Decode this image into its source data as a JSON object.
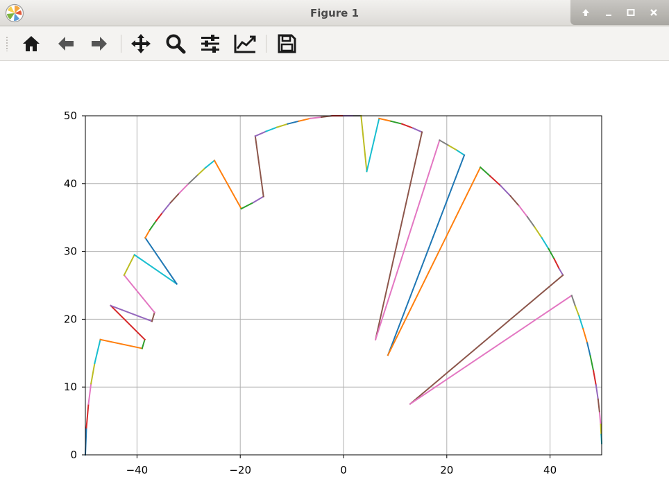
{
  "window": {
    "title": "Figure 1",
    "app_icon": "matplotlib-logo-icon",
    "controls": [
      "shade-up-icon",
      "minimize-icon",
      "maximize-icon",
      "close-icon"
    ]
  },
  "toolbar": {
    "tools": [
      {
        "name": "home-icon"
      },
      {
        "name": "back-icon"
      },
      {
        "name": "forward-icon"
      },
      {
        "name": "pan-icon"
      },
      {
        "name": "zoom-icon"
      },
      {
        "name": "configure-subplots-icon"
      },
      {
        "name": "edit-axis-icon"
      },
      {
        "name": "save-icon"
      }
    ]
  },
  "colors": {
    "palette": [
      "#1f77b4",
      "#ff7f0e",
      "#2ca02c",
      "#d62728",
      "#9467bd",
      "#8c564b",
      "#e377c2",
      "#7f7f7f",
      "#bcbd22",
      "#17becf"
    ]
  },
  "chart_data": {
    "type": "line",
    "title": "",
    "xlabel": "",
    "ylabel": "",
    "xlim": [
      -50,
      50
    ],
    "ylim": [
      0,
      50
    ],
    "grid": true,
    "legend": "none",
    "xticks": [
      -40,
      -20,
      0,
      20,
      40
    ],
    "xtick_labels": [
      "−40",
      "−20",
      "0",
      "20",
      "40"
    ],
    "yticks": [
      0,
      10,
      20,
      30,
      40,
      50
    ],
    "ytick_labels": [
      "0",
      "10",
      "20",
      "30",
      "40",
      "50"
    ],
    "description": "Many short colored segments forming a semicircle of radius 50 with inward spikes",
    "series": [
      {
        "color": "#1f77b4",
        "points": [
          [
            -50,
            0
          ],
          [
            -49.8,
            4
          ]
        ]
      },
      {
        "color": "#d62728",
        "points": [
          [
            -49.8,
            4
          ],
          [
            -49.4,
            7.5
          ]
        ]
      },
      {
        "color": "#e377c2",
        "points": [
          [
            -49.4,
            7.5
          ],
          [
            -48.9,
            10.5
          ]
        ]
      },
      {
        "color": "#bcbd22",
        "points": [
          [
            -48.9,
            10.5
          ],
          [
            -48.2,
            13.5
          ]
        ]
      },
      {
        "color": "#17becf",
        "points": [
          [
            -48.2,
            13.5
          ],
          [
            -47.1,
            17
          ]
        ]
      },
      {
        "color": "#ff7f0e",
        "points": [
          [
            -47.1,
            17
          ],
          [
            -39.0,
            15.7
          ]
        ]
      },
      {
        "color": "#2ca02c",
        "points": [
          [
            -39.0,
            15.7
          ],
          [
            -38.5,
            17
          ]
        ]
      },
      {
        "color": "#d62728",
        "points": [
          [
            -38.5,
            17
          ],
          [
            -45.1,
            22
          ]
        ]
      },
      {
        "color": "#9467bd",
        "points": [
          [
            -45.1,
            22
          ],
          [
            -37.1,
            19.7
          ]
        ]
      },
      {
        "color": "#8c564b",
        "points": [
          [
            -37.1,
            19.7
          ],
          [
            -36.6,
            21
          ]
        ]
      },
      {
        "color": "#e377c2",
        "points": [
          [
            -36.6,
            21
          ],
          [
            -42.5,
            26.5
          ]
        ]
      },
      {
        "color": "#bcbd22",
        "points": [
          [
            -42.5,
            26.5
          ],
          [
            -40.5,
            29.5
          ]
        ]
      },
      {
        "color": "#17becf",
        "points": [
          [
            -40.5,
            29.5
          ],
          [
            -32.3,
            25.2
          ]
        ]
      },
      {
        "color": "#1f77b4",
        "points": [
          [
            -32.3,
            25.2
          ],
          [
            -38.4,
            32
          ]
        ]
      },
      {
        "color": "#ff7f0e",
        "points": [
          [
            -38.4,
            32
          ],
          [
            -37.5,
            33.2
          ]
        ]
      },
      {
        "color": "#2ca02c",
        "points": [
          [
            -37.5,
            33.2
          ],
          [
            -36.3,
            34.5
          ]
        ]
      },
      {
        "color": "#d62728",
        "points": [
          [
            -36.3,
            34.5
          ],
          [
            -35.1,
            35.7
          ]
        ]
      },
      {
        "color": "#9467bd",
        "points": [
          [
            -35.1,
            35.7
          ],
          [
            -33.5,
            37.2
          ]
        ]
      },
      {
        "color": "#8c564b",
        "points": [
          [
            -33.5,
            37.2
          ],
          [
            -31.8,
            38.6
          ]
        ]
      },
      {
        "color": "#e377c2",
        "points": [
          [
            -31.8,
            38.6
          ],
          [
            -30.0,
            40.0
          ]
        ]
      },
      {
        "color": "#7f7f7f",
        "points": [
          [
            -30.0,
            40.0
          ],
          [
            -28.2,
            41.3
          ]
        ]
      },
      {
        "color": "#bcbd22",
        "points": [
          [
            -28.2,
            41.3
          ],
          [
            -26.8,
            42.3
          ]
        ]
      },
      {
        "color": "#17becf",
        "points": [
          [
            -26.8,
            42.3
          ],
          [
            -25.0,
            43.4
          ]
        ]
      },
      {
        "color": "#ff7f0e",
        "points": [
          [
            -25.0,
            43.4
          ],
          [
            -19.8,
            36.3
          ]
        ]
      },
      {
        "color": "#2ca02c",
        "points": [
          [
            -19.8,
            36.3
          ],
          [
            -17.5,
            37.2
          ]
        ]
      },
      {
        "color": "#9467bd",
        "points": [
          [
            -17.5,
            37.2
          ],
          [
            -15.5,
            38.1
          ]
        ]
      },
      {
        "color": "#8c564b",
        "points": [
          [
            -15.5,
            38.1
          ],
          [
            -17.1,
            47
          ]
        ]
      },
      {
        "color": "#9467bd",
        "points": [
          [
            -17.1,
            47
          ],
          [
            -15.0,
            47.7
          ]
        ]
      },
      {
        "color": "#17becf",
        "points": [
          [
            -15.0,
            47.7
          ],
          [
            -12.9,
            48.3
          ]
        ]
      },
      {
        "color": "#bcbd22",
        "points": [
          [
            -12.9,
            48.3
          ],
          [
            -10.8,
            48.8
          ]
        ]
      },
      {
        "color": "#1f77b4",
        "points": [
          [
            -10.8,
            48.8
          ],
          [
            -8.7,
            49.2
          ]
        ]
      },
      {
        "color": "#ff7f0e",
        "points": [
          [
            -8.7,
            49.2
          ],
          [
            -6.5,
            49.6
          ]
        ]
      },
      {
        "color": "#e377c2",
        "points": [
          [
            -6.5,
            49.6
          ],
          [
            -4.3,
            49.8
          ]
        ]
      },
      {
        "color": "#8c564b",
        "points": [
          [
            -4.3,
            49.8
          ],
          [
            -2.2,
            50
          ]
        ]
      },
      {
        "color": "#d62728",
        "points": [
          [
            -2.2,
            50
          ],
          [
            0,
            50
          ]
        ]
      },
      {
        "color": "#9467bd",
        "points": [
          [
            0,
            50
          ],
          [
            2.0,
            50
          ]
        ]
      },
      {
        "color": "#7f7f7f",
        "points": [
          [
            2.0,
            50
          ],
          [
            3.4,
            50
          ]
        ]
      },
      {
        "color": "#bcbd22",
        "points": [
          [
            3.4,
            50
          ],
          [
            4.5,
            41.8
          ]
        ]
      },
      {
        "color": "#17becf",
        "points": [
          [
            4.5,
            41.8
          ],
          [
            6.9,
            49.6
          ]
        ]
      },
      {
        "color": "#ff7f0e",
        "points": [
          [
            6.9,
            49.6
          ],
          [
            9.2,
            49.2
          ]
        ]
      },
      {
        "color": "#2ca02c",
        "points": [
          [
            9.2,
            49.2
          ],
          [
            11.3,
            48.8
          ]
        ]
      },
      {
        "color": "#d62728",
        "points": [
          [
            11.3,
            48.8
          ],
          [
            13.4,
            48.2
          ]
        ]
      },
      {
        "color": "#9467bd",
        "points": [
          [
            13.4,
            48.2
          ],
          [
            15.2,
            47.6
          ]
        ]
      },
      {
        "color": "#8c564b",
        "points": [
          [
            15.2,
            47.6
          ],
          [
            6.2,
            17.0
          ]
        ]
      },
      {
        "color": "#e377c2",
        "points": [
          [
            6.2,
            17.0
          ],
          [
            18.6,
            46.4
          ]
        ]
      },
      {
        "color": "#7f7f7f",
        "points": [
          [
            18.6,
            46.4
          ],
          [
            20.4,
            45.6
          ]
        ]
      },
      {
        "color": "#bcbd22",
        "points": [
          [
            20.4,
            45.6
          ],
          [
            22.0,
            44.9
          ]
        ]
      },
      {
        "color": "#17becf",
        "points": [
          [
            22.0,
            44.9
          ],
          [
            23.4,
            44.2
          ]
        ]
      },
      {
        "color": "#1f77b4",
        "points": [
          [
            23.4,
            44.2
          ],
          [
            8.6,
            14.7
          ]
        ]
      },
      {
        "color": "#ff7f0e",
        "points": [
          [
            8.6,
            14.7
          ],
          [
            26.5,
            42.4
          ]
        ]
      },
      {
        "color": "#2ca02c",
        "points": [
          [
            26.5,
            42.4
          ],
          [
            28.4,
            41.1
          ]
        ]
      },
      {
        "color": "#d62728",
        "points": [
          [
            28.4,
            41.1
          ],
          [
            30.4,
            39.7
          ]
        ]
      },
      {
        "color": "#9467bd",
        "points": [
          [
            30.4,
            39.7
          ],
          [
            32.3,
            38.2
          ]
        ]
      },
      {
        "color": "#8c564b",
        "points": [
          [
            32.3,
            38.2
          ],
          [
            34.0,
            36.7
          ]
        ]
      },
      {
        "color": "#e377c2",
        "points": [
          [
            34.0,
            36.7
          ],
          [
            35.6,
            35.1
          ]
        ]
      },
      {
        "color": "#7f7f7f",
        "points": [
          [
            35.6,
            35.1
          ],
          [
            37.0,
            33.6
          ]
        ]
      },
      {
        "color": "#bcbd22",
        "points": [
          [
            37.0,
            33.6
          ],
          [
            38.4,
            32.0
          ]
        ]
      },
      {
        "color": "#17becf",
        "points": [
          [
            38.4,
            32.0
          ],
          [
            39.7,
            30.4
          ]
        ]
      },
      {
        "color": "#2ca02c",
        "points": [
          [
            39.7,
            30.4
          ],
          [
            40.8,
            28.9
          ]
        ]
      },
      {
        "color": "#d62728",
        "points": [
          [
            40.8,
            28.9
          ],
          [
            41.8,
            27.4
          ]
        ]
      },
      {
        "color": "#9467bd",
        "points": [
          [
            41.8,
            27.4
          ],
          [
            42.5,
            26.5
          ]
        ]
      },
      {
        "color": "#8c564b",
        "points": [
          [
            42.5,
            26.5
          ],
          [
            12.9,
            7.5
          ]
        ]
      },
      {
        "color": "#e377c2",
        "points": [
          [
            12.9,
            7.5
          ],
          [
            44.2,
            23.5
          ]
        ]
      },
      {
        "color": "#7f7f7f",
        "points": [
          [
            44.2,
            23.5
          ],
          [
            44.9,
            21.9
          ]
        ]
      },
      {
        "color": "#bcbd22",
        "points": [
          [
            44.9,
            21.9
          ],
          [
            45.6,
            20.5
          ]
        ]
      },
      {
        "color": "#17becf",
        "points": [
          [
            45.6,
            20.5
          ],
          [
            46.4,
            18.6
          ]
        ]
      },
      {
        "color": "#ff7f0e",
        "points": [
          [
            46.4,
            18.6
          ],
          [
            47.2,
            16.5
          ]
        ]
      },
      {
        "color": "#1f77b4",
        "points": [
          [
            47.2,
            16.5
          ],
          [
            47.8,
            14.6
          ]
        ]
      },
      {
        "color": "#2ca02c",
        "points": [
          [
            47.8,
            14.6
          ],
          [
            48.4,
            12.4
          ]
        ]
      },
      {
        "color": "#d62728",
        "points": [
          [
            48.4,
            12.4
          ],
          [
            48.9,
            10.3
          ]
        ]
      },
      {
        "color": "#9467bd",
        "points": [
          [
            48.9,
            10.3
          ],
          [
            49.3,
            8.2
          ]
        ]
      },
      {
        "color": "#8c564b",
        "points": [
          [
            49.3,
            8.2
          ],
          [
            49.6,
            6.2
          ]
        ]
      },
      {
        "color": "#e377c2",
        "points": [
          [
            49.6,
            6.2
          ],
          [
            49.8,
            4.5
          ]
        ]
      },
      {
        "color": "#bcbd22",
        "points": [
          [
            49.8,
            4.5
          ],
          [
            49.9,
            3.0
          ]
        ]
      },
      {
        "color": "#17becf",
        "points": [
          [
            49.9,
            3.0
          ],
          [
            50.0,
            1.7
          ]
        ]
      }
    ]
  }
}
